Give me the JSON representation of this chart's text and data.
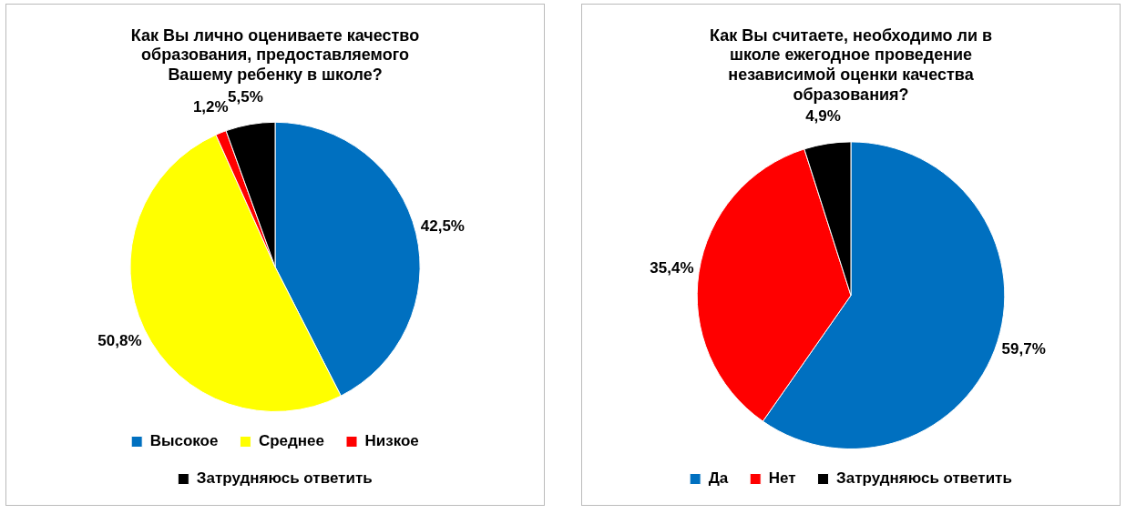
{
  "chart_data": [
    {
      "type": "pie",
      "title": "Как Вы лично оцениваете качество образования, предоставляемого Вашему ребенку в школе?",
      "categories": [
        "Высокое",
        "Среднее",
        "Низкое",
        "Затрудняюсь ответить"
      ],
      "values": [
        42.5,
        50.8,
        1.2,
        5.5
      ],
      "colors": [
        "#0070c0",
        "#ffff00",
        "#ff0000",
        "#000000"
      ],
      "value_labels": [
        "42,5%",
        "50,8%",
        "1,2%",
        "5,5%"
      ],
      "legend": "bottom"
    },
    {
      "type": "pie",
      "title": "Как Вы считаете, необходимо ли в школе ежегодное проведение независимой оценки качества образования?",
      "categories": [
        "Да",
        "Нет",
        "Затрудняюсь ответить"
      ],
      "values": [
        59.7,
        35.4,
        4.9
      ],
      "colors": [
        "#0070c0",
        "#ff0000",
        "#000000"
      ],
      "value_labels": [
        "59,7%",
        "35,4%",
        "4,9%"
      ],
      "legend": "bottom"
    }
  ]
}
